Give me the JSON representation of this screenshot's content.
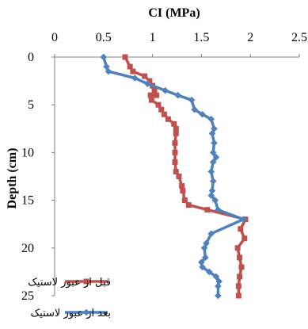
{
  "chart_data": {
    "type": "line",
    "title": "",
    "xlabel": "CI (MPa)",
    "ylabel": "Depth (cm)",
    "xlim": [
      0,
      2.5
    ],
    "ylim": [
      0,
      25
    ],
    "y_inverted": true,
    "x_axis_position": "top",
    "xticks": [
      "0",
      "0.5",
      "1",
      "1.5",
      "2",
      "2.5"
    ],
    "yticks": [
      "0",
      "5",
      "10",
      "15",
      "20",
      "25"
    ],
    "grid": false,
    "legend_position": "bottom-left",
    "series": [
      {
        "name": "قبل از عبور لاستیک",
        "color": "#c0504d",
        "marker": "square",
        "points": [
          [
            0.72,
            0.0
          ],
          [
            0.77,
            1.0
          ],
          [
            0.8,
            1.5
          ],
          [
            0.92,
            2.0
          ],
          [
            0.97,
            2.5
          ],
          [
            1.0,
            3.0
          ],
          [
            1.02,
            3.5
          ],
          [
            1.04,
            4.0
          ],
          [
            0.98,
            4.0
          ],
          [
            0.99,
            4.5
          ],
          [
            1.06,
            5.0
          ],
          [
            1.09,
            5.5
          ],
          [
            1.12,
            6.0
          ],
          [
            1.16,
            6.5
          ],
          [
            1.22,
            7.0
          ],
          [
            1.24,
            7.5
          ],
          [
            1.24,
            8.0
          ],
          [
            1.23,
            9.0
          ],
          [
            1.23,
            10.0
          ],
          [
            1.23,
            11.0
          ],
          [
            1.24,
            12.0
          ],
          [
            1.27,
            12.5
          ],
          [
            1.3,
            13.5
          ],
          [
            1.31,
            14.0
          ],
          [
            1.33,
            15.0
          ],
          [
            1.37,
            15.5
          ],
          [
            1.56,
            16.0
          ],
          [
            1.95,
            17.0
          ],
          [
            1.9,
            18.0
          ],
          [
            1.94,
            19.0
          ],
          [
            1.87,
            20.0
          ],
          [
            1.89,
            21.0
          ],
          [
            1.91,
            22.0
          ],
          [
            1.89,
            23.0
          ],
          [
            1.88,
            24.0
          ],
          [
            1.88,
            25.0
          ]
        ]
      },
      {
        "name": "بعد از عبور لاستیک",
        "color": "#4f81bd",
        "marker": "diamond",
        "points": [
          [
            0.5,
            0.0
          ],
          [
            0.53,
            1.0
          ],
          [
            0.55,
            1.5
          ],
          [
            0.82,
            2.2
          ],
          [
            0.95,
            2.8
          ],
          [
            1.13,
            3.5
          ],
          [
            1.26,
            4.0
          ],
          [
            1.4,
            4.5
          ],
          [
            1.43,
            5.5
          ],
          [
            1.51,
            6.0
          ],
          [
            1.6,
            6.5
          ],
          [
            1.63,
            7.5
          ],
          [
            1.61,
            8.0
          ],
          [
            1.63,
            9.0
          ],
          [
            1.62,
            10.0
          ],
          [
            1.65,
            10.5
          ],
          [
            1.62,
            11.0
          ],
          [
            1.6,
            12.0
          ],
          [
            1.62,
            13.0
          ],
          [
            1.61,
            14.0
          ],
          [
            1.6,
            14.5
          ],
          [
            1.64,
            15.0
          ],
          [
            1.67,
            16.0
          ],
          [
            1.93,
            17.0
          ],
          [
            1.6,
            18.5
          ],
          [
            1.55,
            19.5
          ],
          [
            1.53,
            20.0
          ],
          [
            1.54,
            21.0
          ],
          [
            1.5,
            21.5
          ],
          [
            1.51,
            22.0
          ],
          [
            1.58,
            22.5
          ],
          [
            1.65,
            23.0
          ],
          [
            1.68,
            23.5
          ],
          [
            1.67,
            24.0
          ],
          [
            1.67,
            25.0
          ]
        ]
      }
    ]
  }
}
